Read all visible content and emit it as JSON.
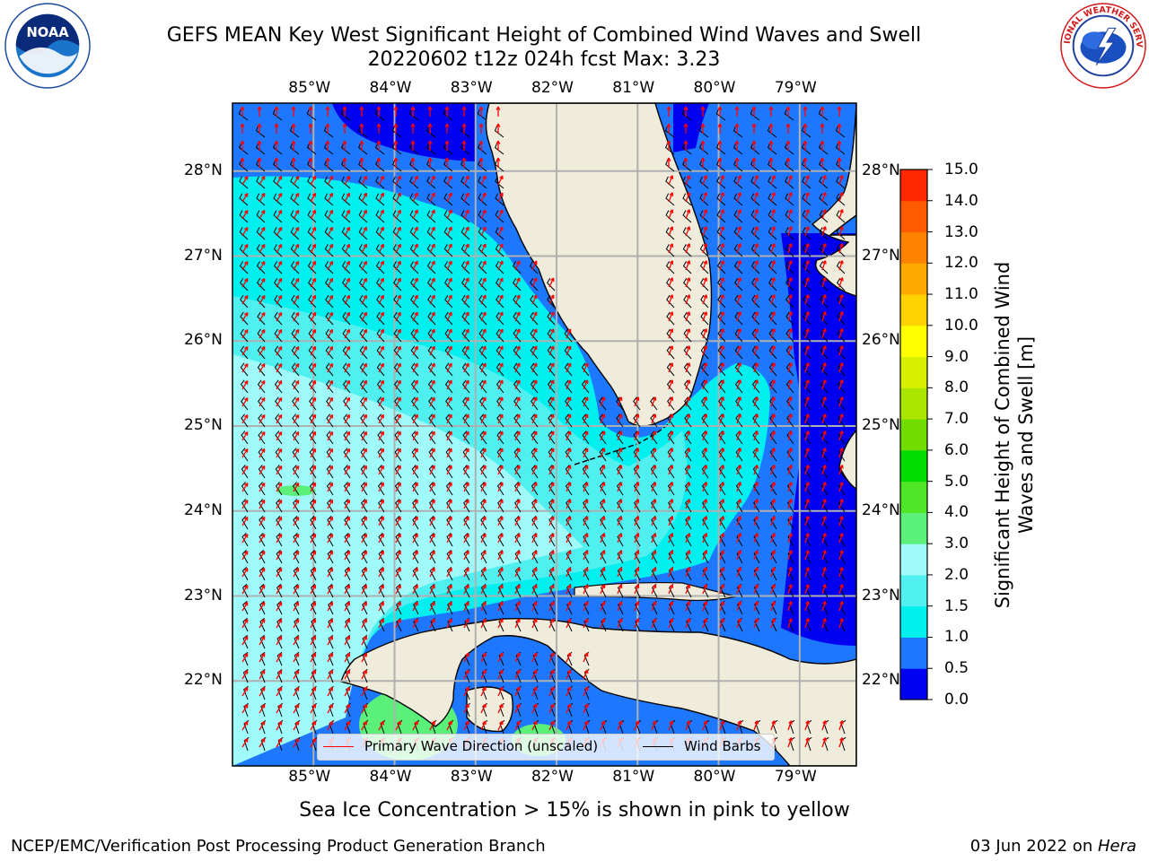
{
  "header": {
    "title_line1": "GEFS MEAN Key West Significant Height of Combined Wind Waves and Swell",
    "title_line2": "20220602 t12z 024h fcst   Max: 3.23"
  },
  "logos": {
    "noaa": {
      "text": "NOAA",
      "ring_text": "NATIONAL OCEANIC AND ATMOSPHERIC ADMINISTRATION · U.S. DEPARTMENT OF COMMERCE"
    },
    "nws": {
      "ring_text": "NATIONAL WEATHER SERVICE"
    }
  },
  "map": {
    "lon_range": [
      -86.0,
      -78.3
    ],
    "lat_range": [
      21.0,
      28.8
    ],
    "lon_ticks": [
      "85°W",
      "84°W",
      "83°W",
      "82°W",
      "81°W",
      "80°W",
      "79°W"
    ],
    "lon_values": [
      -85,
      -84,
      -83,
      -82,
      -81,
      -80,
      -79
    ],
    "lat_ticks": [
      "28°N",
      "27°N",
      "26°N",
      "25°N",
      "24°N",
      "23°N",
      "22°N"
    ],
    "lat_values": [
      28,
      27,
      26,
      25,
      24,
      23,
      22
    ],
    "max_wave_height_m": 3.23,
    "grid": true
  },
  "colorbar": {
    "label": "Significant Height of Combined Wind Waves and Swell [m]",
    "ticks": [
      "0.0",
      "0.5",
      "1.0",
      "1.5",
      "2.0",
      "3.0",
      "4.0",
      "5.0",
      "6.0",
      "7.0",
      "8.0",
      "9.0",
      "10.0",
      "11.0",
      "12.0",
      "13.0",
      "14.0",
      "15.0"
    ],
    "colors": [
      "#0000f0",
      "#1e78ff",
      "#00f0f0",
      "#50f0f0",
      "#a0fafa",
      "#5af07a",
      "#50e628",
      "#00dc00",
      "#70dc00",
      "#a8e600",
      "#d6f000",
      "#ffff00",
      "#ffd200",
      "#ffaa00",
      "#ff8200",
      "#ff5a00",
      "#ff2800",
      "#ff0000"
    ]
  },
  "legend": {
    "wave_direction": "Primary Wave Direction (unscaled)",
    "wind_barbs": "Wind Barbs",
    "colors": {
      "wave": "#ff0000",
      "wind": "#000000"
    }
  },
  "footnote": "Sea Ice Concentration > 15% is shown in pink to yellow",
  "footer": {
    "left": "NCEP/EMC/Verification Post Processing Product Generation Branch",
    "right_date": "03 Jun 2022 on ",
    "right_host": "Hera"
  },
  "colors": {
    "land": "#efecdc",
    "grid": "#b0b0b0",
    "coast": "#000000"
  }
}
